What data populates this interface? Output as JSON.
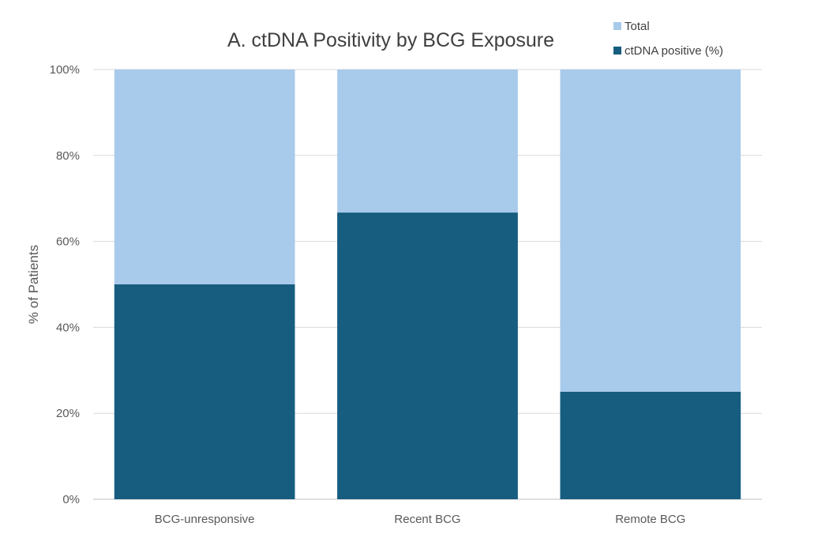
{
  "chart_data": {
    "type": "bar",
    "stacking": "overlapped",
    "title": "A. ctDNA Positivity by BCG Exposure",
    "ylabel": "% of Patients",
    "xlabel": "",
    "ylim": [
      0,
      100
    ],
    "yticks": [
      0,
      20,
      40,
      60,
      80,
      100
    ],
    "ytick_labels": [
      "0%",
      "20%",
      "40%",
      "60%",
      "80%",
      "100%"
    ],
    "categories": [
      "BCG-unresponsive",
      "Recent BCG",
      "Remote BCG"
    ],
    "series": [
      {
        "name": "Total",
        "values": [
          100,
          100,
          100
        ],
        "color": "#a8caeb"
      },
      {
        "name": "ctDNA positive (%)",
        "values": [
          50,
          66.7,
          25
        ],
        "color": "#175d80"
      }
    ],
    "grid": true,
    "legend_position": "top-right"
  }
}
